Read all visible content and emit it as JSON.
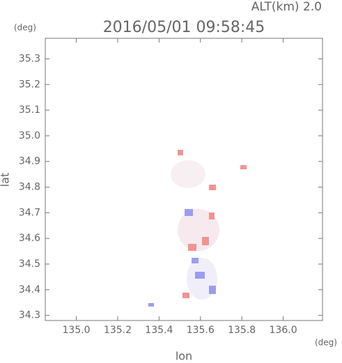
{
  "chart_data": {
    "type": "image",
    "title": "2016/05/01 09:58:45",
    "subtitle": "ALT(km) 2.0",
    "y_unit": "(deg)",
    "x_unit": "(deg)",
    "x_label": "lon",
    "y_label": "lat",
    "xlim": [
      134.85,
      136.19
    ],
    "ylim": [
      34.28,
      35.38
    ],
    "xticks": [
      {
        "value": 135.0,
        "label": "135.0"
      },
      135.2,
      135.4,
      135.6,
      135.8,
      {
        "value": 136.0,
        "label": "136.0"
      }
    ],
    "yticks": [
      34.3,
      34.4,
      34.5,
      34.6,
      34.7,
      34.8,
      34.9,
      {
        "value": 35.0,
        "label": "35.0"
      },
      35.1,
      35.2,
      35.3
    ]
  }
}
